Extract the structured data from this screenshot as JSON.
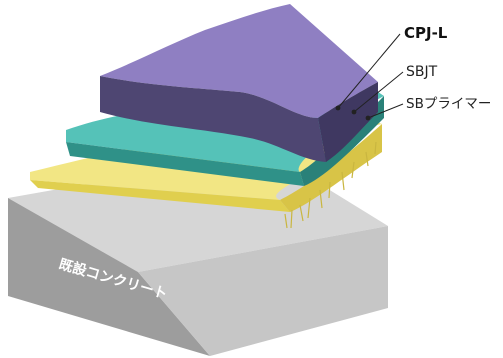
{
  "labels": {
    "cpj": "CPJ-L",
    "sbjt": "SBJT",
    "primer": "SBプライマー",
    "concrete": "既設コンクリート"
  },
  "colors": {
    "cpj_top": "#8f7fc2",
    "cpj_side": "#4e4672",
    "sbjt_top": "#4fbfb4",
    "sbjt_side": "#2b8c84",
    "primer_top": "#f4ea86",
    "primer_side": "#d9c94a",
    "concrete_top": "#d6d6d6",
    "concrete_front": "#9a9a9a",
    "concrete_right": "#c4c4c4"
  }
}
